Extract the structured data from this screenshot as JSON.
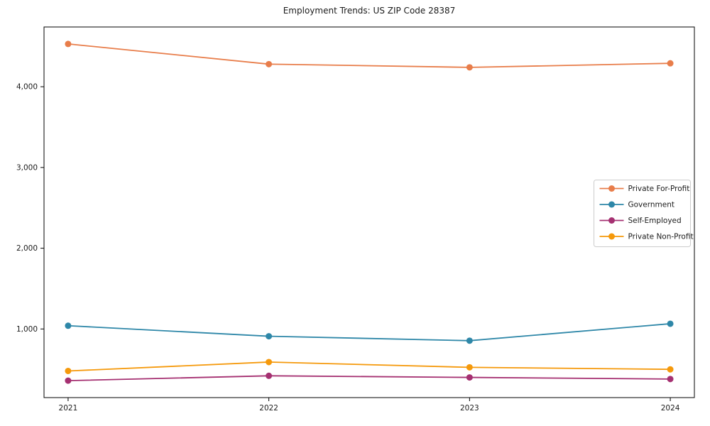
{
  "figure": {
    "background": "#ffffff",
    "spine_color": "#000000"
  },
  "chart_data": {
    "type": "line",
    "title": "Employment Trends: US ZIP Code 28387",
    "xlabel": "",
    "ylabel": "",
    "grid": false,
    "legend_position": "right-middle",
    "marker": "circle",
    "x": [
      2021,
      2022,
      2023,
      2024
    ],
    "x_tick_labels": [
      "2021",
      "2022",
      "2023",
      "2024"
    ],
    "y_tick_values": [
      1000,
      2000,
      3000,
      4000
    ],
    "y_tick_labels": [
      "1,000",
      "2,000",
      "3,000",
      "4,000"
    ],
    "xlim": [
      2020.88,
      2024.12
    ],
    "ylim": [
      150,
      4740
    ],
    "series": [
      {
        "name": "Private For-Profit",
        "color": "#E87D4A",
        "values": [
          4530,
          4280,
          4240,
          4290
        ]
      },
      {
        "name": "Government",
        "color": "#2E87A8",
        "values": [
          1040,
          910,
          855,
          1065
        ]
      },
      {
        "name": "Self-Employed",
        "color": "#A53071",
        "values": [
          360,
          420,
          400,
          380
        ]
      },
      {
        "name": "Private Non-Profit",
        "color": "#F5990B",
        "values": [
          480,
          590,
          525,
          500
        ]
      }
    ]
  }
}
